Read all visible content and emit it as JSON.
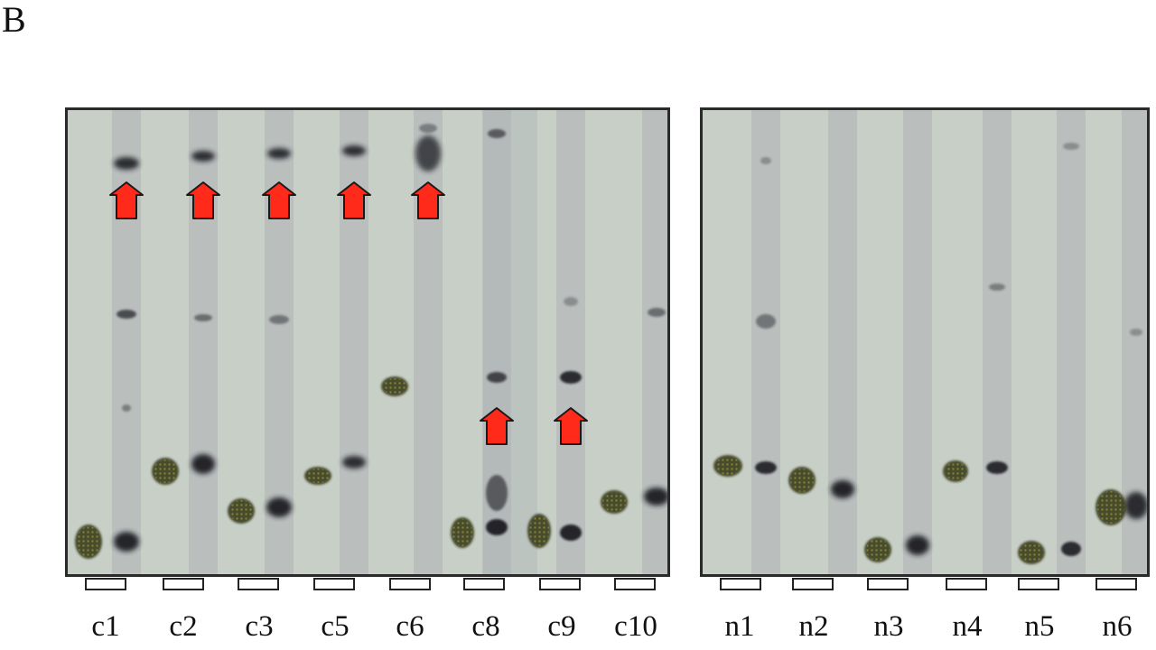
{
  "panel_label": "B",
  "panels": [
    {
      "id": "left",
      "lanes": [
        {
          "label": "c1"
        },
        {
          "label": "c2"
        },
        {
          "label": "c3"
        },
        {
          "label": "c5"
        },
        {
          "label": "c6"
        },
        {
          "label": "c8"
        },
        {
          "label": "c9"
        },
        {
          "label": "c10"
        }
      ]
    },
    {
      "id": "right",
      "lanes": [
        {
          "label": "n1"
        },
        {
          "label": "n2"
        },
        {
          "label": "n3"
        },
        {
          "label": "n4"
        },
        {
          "label": "n5"
        },
        {
          "label": "n6"
        }
      ]
    }
  ],
  "colors": {
    "arrow_fill": "#ff2a1a",
    "arrow_stroke": "#1a1a1a",
    "band": "#1c1f24",
    "spot": "#3a3c1e",
    "gel_background": "#c7cfc6"
  }
}
